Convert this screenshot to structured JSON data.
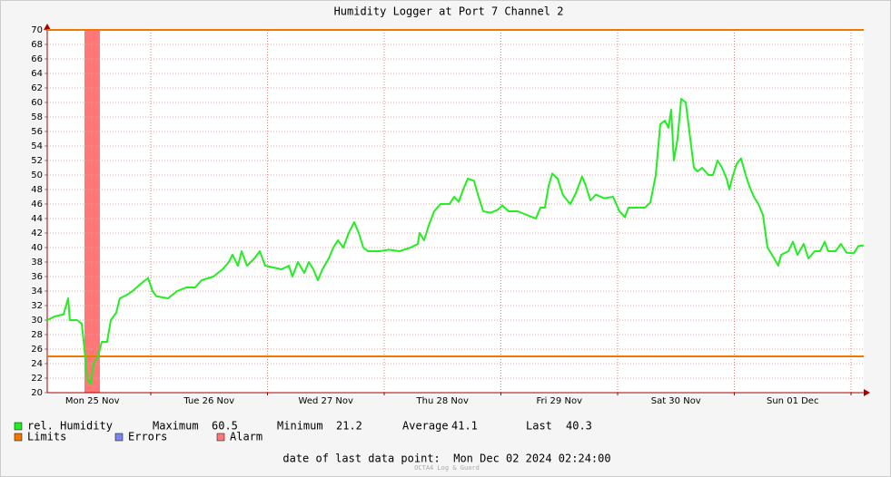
{
  "chart_data": {
    "type": "line",
    "title": "Humidity Logger at Port 7 Channel 2",
    "xlim": [
      0.113,
      7.109
    ],
    "xticks": [
      {
        "value": 0.5,
        "label": "Mon 25 Nov"
      },
      {
        "value": 1.5,
        "label": "Tue 26 Nov"
      },
      {
        "value": 2.5,
        "label": "Wed 27 Nov"
      },
      {
        "value": 3.5,
        "label": "Thu 28 Nov"
      },
      {
        "value": 4.5,
        "label": "Fri 29 Nov"
      },
      {
        "value": 5.5,
        "label": "Sat 30 Nov"
      },
      {
        "value": 6.5,
        "label": "Sun 01 Dec"
      }
    ],
    "xgrid": [
      1,
      2,
      3,
      4,
      5,
      6,
      7
    ],
    "ylim": [
      20,
      70
    ],
    "yticks": [
      20,
      22,
      24,
      26,
      28,
      30,
      32,
      34,
      36,
      38,
      40,
      42,
      44,
      46,
      48,
      50,
      52,
      54,
      56,
      58,
      60,
      62,
      64,
      66,
      68,
      70
    ],
    "grid": true,
    "series": [
      {
        "name": "rel. Humidity",
        "color": "#22ee22",
        "x": [
          0.113,
          0.175,
          0.253,
          0.292,
          0.307,
          0.37,
          0.409,
          0.432,
          0.455,
          0.486,
          0.51,
          0.549,
          0.58,
          0.626,
          0.658,
          0.704,
          0.735,
          0.798,
          0.844,
          0.914,
          0.977,
          1.016,
          1.047,
          1.148,
          1.226,
          1.304,
          1.381,
          1.436,
          1.537,
          1.615,
          1.669,
          1.7,
          1.747,
          1.778,
          1.825,
          1.887,
          1.934,
          1.981,
          2.121,
          2.183,
          2.214,
          2.261,
          2.315,
          2.354,
          2.393,
          2.432,
          2.471,
          2.525,
          2.564,
          2.603,
          2.65,
          2.696,
          2.743,
          2.782,
          2.821,
          2.86,
          2.961,
          3.039,
          3.132,
          3.226,
          3.288,
          3.304,
          3.342,
          3.381,
          3.428,
          3.482,
          3.56,
          3.599,
          3.638,
          3.677,
          3.716,
          3.77,
          3.809,
          3.848,
          3.911,
          3.973,
          4.012,
          4.066,
          4.144,
          4.222,
          4.3,
          4.339,
          4.377,
          4.409,
          4.44,
          4.486,
          4.533,
          4.595,
          4.642,
          4.696,
          4.728,
          4.767,
          4.813,
          4.883,
          4.961,
          5.016,
          5.062,
          5.093,
          5.156,
          5.233,
          5.28,
          5.327,
          5.366,
          5.405,
          5.436,
          5.459,
          5.482,
          5.514,
          5.545,
          5.584,
          5.623,
          5.654,
          5.685,
          5.724,
          5.778,
          5.817,
          5.856,
          5.895,
          5.934,
          5.957,
          5.981,
          6.019,
          6.058,
          6.097,
          6.128,
          6.167,
          6.206,
          6.245,
          6.284,
          6.323,
          6.377,
          6.401,
          6.463,
          6.502,
          6.541,
          6.595,
          6.634,
          6.689,
          6.735,
          6.774,
          6.805,
          6.868,
          6.914,
          6.961,
          7.023,
          7.062,
          7.109
        ],
        "values": [
          30,
          30.5,
          30.8,
          33,
          30,
          30,
          29.5,
          26,
          22,
          21.2,
          24,
          25,
          27,
          27,
          30,
          31,
          33,
          33.5,
          34,
          35,
          35.8,
          34,
          33.3,
          33,
          34,
          34.5,
          34.5,
          35.5,
          36,
          37,
          38,
          39,
          37.5,
          39.5,
          37.5,
          38.5,
          39.5,
          37.5,
          37,
          37.5,
          36,
          38,
          36.5,
          38,
          37,
          35.5,
          37,
          38.5,
          40,
          41,
          40,
          42,
          43.5,
          42,
          40,
          39.5,
          39.5,
          39.7,
          39.5,
          40,
          40.5,
          42,
          41,
          43,
          45,
          46,
          46,
          47,
          46.3,
          48,
          49.5,
          49.2,
          47,
          45,
          44.8,
          45.2,
          45.8,
          45,
          45,
          44.5,
          44,
          45.5,
          45.5,
          48.5,
          50.2,
          49.5,
          47.2,
          46,
          47.5,
          49.8,
          48.5,
          46.5,
          47.3,
          46.8,
          47,
          45,
          44.2,
          45.5,
          45.5,
          45.5,
          46.2,
          50,
          57,
          57.5,
          56.5,
          59,
          52,
          55,
          60.5,
          60,
          55,
          51,
          50.5,
          51,
          50,
          50,
          52,
          51,
          49.5,
          48,
          49.5,
          51.5,
          52.3,
          50,
          48.5,
          47,
          46,
          44.5,
          40,
          39,
          37.5,
          39,
          39.5,
          40.8,
          39,
          40.5,
          38.5,
          39.5,
          39.5,
          40.8,
          39.5,
          39.5,
          40.5,
          39.3,
          39.2,
          40.2,
          40.3
        ]
      }
    ],
    "stats": [
      {
        "label": "Maximum",
        "value": 60.5
      },
      {
        "label": "Minimum",
        "value": 21.2
      },
      {
        "label": "Average",
        "value": 41.1
      },
      {
        "label": "Last",
        "value": 40.3
      }
    ],
    "limits": {
      "name": "Limits",
      "color": "#f07800",
      "values": [
        25,
        70
      ]
    },
    "errors": {
      "name": "Errors",
      "color": "#7b84f0"
    },
    "alarm": {
      "name": "Alarm",
      "color": "#ff7777",
      "ranges": [
        [
          0.432,
          0.564
        ]
      ]
    },
    "footer": "date of last data point:  Mon Dec 02 2024 02:24:00",
    "watermark": "OCTA4 Log & Guard"
  }
}
